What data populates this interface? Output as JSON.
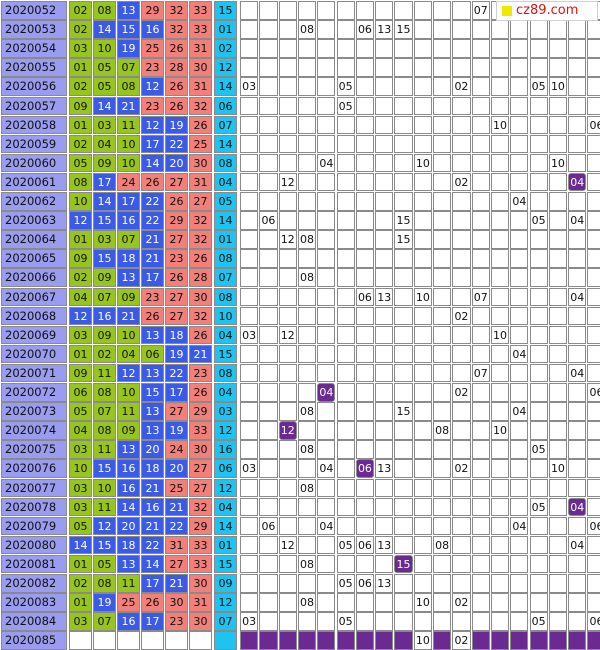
{
  "brand": {
    "label": "cz89.com"
  },
  "rows": [
    {
      "period": "2020052",
      "reds": [
        "02",
        "08",
        "13",
        "29",
        "32",
        "33"
      ],
      "blue": "15",
      "trail": [
        {
          "i": 12,
          "t": "07"
        }
      ]
    },
    {
      "period": "2020053",
      "reds": [
        "02",
        "14",
        "15",
        "16",
        "32",
        "33"
      ],
      "blue": "01",
      "trail": [
        {
          "i": 3,
          "t": "08"
        },
        {
          "i": 6,
          "t": "06"
        },
        {
          "i": 7,
          "t": "13"
        },
        {
          "i": 8,
          "t": "15"
        }
      ]
    },
    {
      "period": "2020054",
      "reds": [
        "03",
        "10",
        "19",
        "25",
        "26",
        "31"
      ],
      "blue": "02",
      "trail": []
    },
    {
      "period": "2020055",
      "reds": [
        "01",
        "05",
        "07",
        "23",
        "28",
        "30"
      ],
      "blue": "12",
      "trail": []
    },
    {
      "period": "2020056",
      "reds": [
        "02",
        "05",
        "08",
        "12",
        "26",
        "31"
      ],
      "blue": "14",
      "trail": [
        {
          "i": 0,
          "t": "03"
        },
        {
          "i": 5,
          "t": "05"
        },
        {
          "i": 11,
          "t": "02"
        },
        {
          "i": 15,
          "t": "05"
        },
        {
          "i": 16,
          "t": "10"
        }
      ]
    },
    {
      "period": "2020057",
      "reds": [
        "09",
        "14",
        "21",
        "23",
        "26",
        "32"
      ],
      "blue": "06",
      "trail": [
        {
          "i": 5,
          "t": "05"
        }
      ]
    },
    {
      "period": "2020058",
      "reds": [
        "01",
        "03",
        "11",
        "12",
        "19",
        "26"
      ],
      "blue": "07",
      "trail": [
        {
          "i": 13,
          "t": "10"
        },
        {
          "i": 18,
          "t": "06"
        }
      ]
    },
    {
      "period": "2020059",
      "reds": [
        "02",
        "04",
        "10",
        "17",
        "22",
        "25"
      ],
      "blue": "14",
      "trail": []
    },
    {
      "period": "2020060",
      "reds": [
        "05",
        "09",
        "10",
        "14",
        "20",
        "30"
      ],
      "blue": "08",
      "trail": [
        {
          "i": 4,
          "t": "04"
        },
        {
          "i": 9,
          "t": "10"
        },
        {
          "i": 16,
          "t": "10"
        }
      ]
    },
    {
      "period": "2020061",
      "reds": [
        "08",
        "17",
        "24",
        "26",
        "27",
        "31"
      ],
      "blue": "04",
      "trail": [
        {
          "i": 2,
          "t": "12"
        },
        {
          "i": 11,
          "t": "02"
        },
        {
          "i": 17,
          "t": "04",
          "mark": true
        }
      ]
    },
    {
      "period": "2020062",
      "reds": [
        "10",
        "14",
        "17",
        "22",
        "26",
        "27"
      ],
      "blue": "05",
      "trail": [
        {
          "i": 14,
          "t": "04"
        }
      ]
    },
    {
      "period": "2020063",
      "reds": [
        "12",
        "15",
        "16",
        "22",
        "29",
        "32"
      ],
      "blue": "14",
      "trail": [
        {
          "i": 1,
          "t": "06"
        },
        {
          "i": 8,
          "t": "15"
        },
        {
          "i": 15,
          "t": "05"
        },
        {
          "i": 17,
          "t": "04"
        }
      ]
    },
    {
      "period": "2020064",
      "reds": [
        "01",
        "03",
        "07",
        "21",
        "27",
        "32"
      ],
      "blue": "01",
      "trail": [
        {
          "i": 2,
          "t": "12"
        },
        {
          "i": 3,
          "t": "08"
        },
        {
          "i": 8,
          "t": "15"
        }
      ]
    },
    {
      "period": "2020065",
      "reds": [
        "09",
        "15",
        "18",
        "21",
        "23",
        "26"
      ],
      "blue": "08",
      "trail": []
    },
    {
      "period": "2020066",
      "reds": [
        "02",
        "09",
        "13",
        "17",
        "26",
        "28"
      ],
      "blue": "07",
      "trail": [
        {
          "i": 3,
          "t": "08"
        }
      ]
    },
    {
      "period": "2020067",
      "reds": [
        "04",
        "07",
        "09",
        "23",
        "27",
        "30"
      ],
      "blue": "08",
      "trail": [
        {
          "i": 6,
          "t": "06"
        },
        {
          "i": 7,
          "t": "13"
        },
        {
          "i": 9,
          "t": "10"
        },
        {
          "i": 12,
          "t": "07"
        },
        {
          "i": 17,
          "t": "04"
        }
      ]
    },
    {
      "period": "2020068",
      "reds": [
        "12",
        "16",
        "21",
        "26",
        "27",
        "32"
      ],
      "blue": "10",
      "trail": [
        {
          "i": 11,
          "t": "02"
        }
      ]
    },
    {
      "period": "2020069",
      "reds": [
        "03",
        "09",
        "10",
        "13",
        "18",
        "26"
      ],
      "blue": "04",
      "trail": [
        {
          "i": 0,
          "t": "03"
        },
        {
          "i": 2,
          "t": "12"
        },
        {
          "i": 13,
          "t": "10"
        }
      ]
    },
    {
      "period": "2020070",
      "reds": [
        "01",
        "02",
        "04",
        "06",
        "19",
        "21"
      ],
      "blue": "15",
      "trail": [
        {
          "i": 14,
          "t": "04"
        }
      ]
    },
    {
      "period": "2020071",
      "reds": [
        "09",
        "11",
        "12",
        "13",
        "22",
        "23"
      ],
      "blue": "08",
      "trail": [
        {
          "i": 12,
          "t": "07"
        },
        {
          "i": 17,
          "t": "04"
        }
      ]
    },
    {
      "period": "2020072",
      "reds": [
        "06",
        "08",
        "10",
        "15",
        "17",
        "26"
      ],
      "blue": "04",
      "trail": [
        {
          "i": 4,
          "t": "04",
          "mark": true
        },
        {
          "i": 11,
          "t": "02"
        },
        {
          "i": 18,
          "t": "06"
        }
      ]
    },
    {
      "period": "2020073",
      "reds": [
        "05",
        "07",
        "11",
        "13",
        "27",
        "29"
      ],
      "blue": "03",
      "trail": [
        {
          "i": 3,
          "t": "08"
        },
        {
          "i": 8,
          "t": "15"
        },
        {
          "i": 14,
          "t": "04"
        }
      ]
    },
    {
      "period": "2020074",
      "reds": [
        "04",
        "08",
        "09",
        "13",
        "19",
        "33"
      ],
      "blue": "12",
      "trail": [
        {
          "i": 2,
          "t": "12",
          "mark": true
        },
        {
          "i": 10,
          "t": "08"
        },
        {
          "i": 13,
          "t": "10"
        }
      ]
    },
    {
      "period": "2020075",
      "reds": [
        "03",
        "11",
        "13",
        "20",
        "24",
        "30"
      ],
      "blue": "16",
      "trail": [
        {
          "i": 3,
          "t": "08"
        },
        {
          "i": 15,
          "t": "05"
        }
      ]
    },
    {
      "period": "2020076",
      "reds": [
        "10",
        "15",
        "16",
        "18",
        "20",
        "27"
      ],
      "blue": "06",
      "trail": [
        {
          "i": 0,
          "t": "03"
        },
        {
          "i": 4,
          "t": "04"
        },
        {
          "i": 6,
          "t": "06",
          "mark": true
        },
        {
          "i": 7,
          "t": "13"
        },
        {
          "i": 11,
          "t": "02"
        },
        {
          "i": 16,
          "t": "10"
        }
      ]
    },
    {
      "period": "2020077",
      "reds": [
        "03",
        "10",
        "16",
        "21",
        "25",
        "27"
      ],
      "blue": "12",
      "trail": [
        {
          "i": 3,
          "t": "08"
        }
      ]
    },
    {
      "period": "2020078",
      "reds": [
        "03",
        "11",
        "14",
        "16",
        "21",
        "32"
      ],
      "blue": "04",
      "trail": [
        {
          "i": 15,
          "t": "05"
        },
        {
          "i": 17,
          "t": "04",
          "mark": true
        }
      ]
    },
    {
      "period": "2020079",
      "reds": [
        "05",
        "12",
        "20",
        "21",
        "22",
        "29"
      ],
      "blue": "14",
      "trail": [
        {
          "i": 1,
          "t": "06"
        },
        {
          "i": 4,
          "t": "04"
        },
        {
          "i": 14,
          "t": "04"
        },
        {
          "i": 18,
          "t": "06"
        }
      ]
    },
    {
      "period": "2020080",
      "reds": [
        "14",
        "15",
        "18",
        "22",
        "31",
        "33"
      ],
      "blue": "01",
      "trail": [
        {
          "i": 2,
          "t": "12"
        },
        {
          "i": 5,
          "t": "05"
        },
        {
          "i": 6,
          "t": "06"
        },
        {
          "i": 7,
          "t": "13"
        },
        {
          "i": 10,
          "t": "08"
        },
        {
          "i": 17,
          "t": "04"
        }
      ]
    },
    {
      "period": "2020081",
      "reds": [
        "01",
        "05",
        "13",
        "14",
        "27",
        "33"
      ],
      "blue": "15",
      "trail": [
        {
          "i": 3,
          "t": "08"
        },
        {
          "i": 8,
          "t": "15",
          "mark": true
        }
      ]
    },
    {
      "period": "2020082",
      "reds": [
        "02",
        "08",
        "11",
        "17",
        "21",
        "30"
      ],
      "blue": "09",
      "trail": [
        {
          "i": 5,
          "t": "05"
        },
        {
          "i": 6,
          "t": "06"
        },
        {
          "i": 7,
          "t": "13"
        }
      ]
    },
    {
      "period": "2020083",
      "reds": [
        "01",
        "19",
        "25",
        "26",
        "30",
        "31"
      ],
      "blue": "12",
      "trail": [
        {
          "i": 3,
          "t": "08"
        },
        {
          "i": 9,
          "t": "10"
        },
        {
          "i": 11,
          "t": "02"
        }
      ]
    },
    {
      "period": "2020084",
      "reds": [
        "03",
        "07",
        "16",
        "17",
        "23",
        "30"
      ],
      "blue": "07",
      "trail": [
        {
          "i": 0,
          "t": "03"
        },
        {
          "i": 5,
          "t": "05"
        },
        {
          "i": 15,
          "t": "05"
        },
        {
          "i": 18,
          "t": "06"
        }
      ]
    }
  ],
  "pending": {
    "period": "2020085",
    "trail": [
      {
        "i": 9,
        "t": "10"
      },
      {
        "i": 11,
        "t": "02"
      }
    ]
  },
  "colors": {
    "period": "#9a9cf0",
    "red_ball": "#f08079",
    "blue_ball": "#3b5ae6",
    "green_ball": "#97c51e",
    "special_ball": "#1fc3ef",
    "mark": "#6a2a92",
    "brand_text": "#dd1111",
    "brand_square": "#f3e600"
  }
}
